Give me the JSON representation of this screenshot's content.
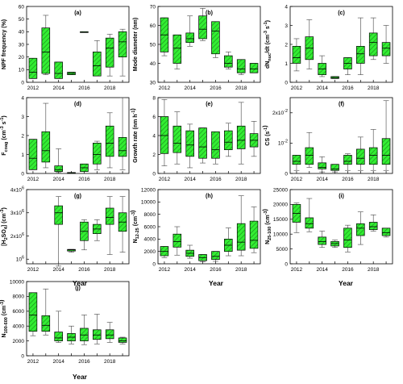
{
  "figure": {
    "x_axis_title": "Year",
    "box_fill": "#33ee33",
    "hatch_color": "#1a8a1a",
    "line_color": "#000000",
    "whisker_color": "#444444"
  },
  "chart_data": [
    {
      "type": "box",
      "title": "(a)",
      "ylabel": "NPF frequency (%)",
      "ylim": [
        0,
        60
      ],
      "yticks": [
        "0",
        "10",
        "20",
        "30",
        "40",
        "50",
        "60"
      ],
      "xticks": [
        "2012",
        "2014",
        "2016",
        "2018"
      ],
      "categories": [
        "2012",
        "2013",
        "2014",
        "2015",
        "2016",
        "2017",
        "2018",
        "2019"
      ],
      "boxes": [
        {
          "whislo": 3,
          "q1": 3,
          "med": 8,
          "q3": 19,
          "whishi": 19
        },
        {
          "whislo": 6,
          "q1": 7,
          "med": 24,
          "q3": 43,
          "whishi": 53
        },
        {
          "whislo": 3,
          "q1": 3,
          "med": 7,
          "q3": 16,
          "whishi": 16
        },
        {
          "whislo": 6,
          "q1": 6,
          "med": 7,
          "q3": 8,
          "whishi": 8
        },
        {
          "whislo": 40,
          "q1": 40,
          "med": 40,
          "q3": 40,
          "whishi": 40
        },
        {
          "whislo": 5,
          "q1": 5,
          "med": 13,
          "q3": 24,
          "whishi": 33
        },
        {
          "whislo": 5,
          "q1": 12,
          "med": 27,
          "q3": 35,
          "whishi": 38
        },
        {
          "whislo": 5,
          "q1": 20,
          "med": 32,
          "q3": 40,
          "whishi": 42
        }
      ]
    },
    {
      "type": "box",
      "title": "(b)",
      "ylabel": "Mode diameter (nm)",
      "ylim": [
        30,
        70
      ],
      "yticks": [
        "30",
        "40",
        "50",
        "60",
        "70"
      ],
      "xticks": [
        "2012",
        "2014",
        "2016",
        "2018"
      ],
      "categories": [
        "2012",
        "2013",
        "2014",
        "2015",
        "2016",
        "2017",
        "2018",
        "2019"
      ],
      "boxes": [
        {
          "whislo": 44,
          "q1": 46,
          "med": 55,
          "q3": 64,
          "whishi": 64
        },
        {
          "whislo": 37,
          "q1": 40,
          "med": 48,
          "q3": 55,
          "whishi": 55
        },
        {
          "whislo": 49,
          "q1": 51,
          "med": 53,
          "q3": 56,
          "whishi": 65
        },
        {
          "whislo": 52,
          "q1": 53,
          "med": 58,
          "q3": 65,
          "whishi": 69
        },
        {
          "whislo": 43,
          "q1": 45,
          "med": 57,
          "q3": 62,
          "whishi": 62
        },
        {
          "whislo": 37,
          "q1": 38,
          "med": 40,
          "q3": 44,
          "whishi": 46
        },
        {
          "whislo": 34,
          "q1": 35,
          "med": 37,
          "q3": 42,
          "whishi": 42
        },
        {
          "whislo": 35,
          "q1": 35,
          "med": 37,
          "q3": 40,
          "whishi": 40
        }
      ]
    },
    {
      "type": "box",
      "title": "(c)",
      "ylabel": "dNnuc/dt (cm-3 s-1)",
      "ylabel_main": "dN",
      "ylabel_sub": "nuc",
      "ylabel_rest": "/dt (cm",
      "ylabel_sup1": "-3",
      "ylabel_mid": " s",
      "ylabel_sup2": "-1",
      "ylabel_end": ")",
      "ylim": [
        0,
        4
      ],
      "yticks": [
        "0",
        "1",
        "2",
        "3",
        "4"
      ],
      "xticks": [
        "2012",
        "2014",
        "2016",
        "2018"
      ],
      "categories": [
        "2012",
        "2013",
        "2014",
        "2015",
        "2016",
        "2017",
        "2018",
        "2019"
      ],
      "boxes": [
        {
          "whislo": 0.6,
          "q1": 1.0,
          "med": 1.3,
          "q3": 1.9,
          "whishi": 2.3
        },
        {
          "whislo": 0.7,
          "q1": 1.2,
          "med": 1.8,
          "q3": 2.4,
          "whishi": 3.3
        },
        {
          "whislo": 0.3,
          "q1": 0.4,
          "med": 0.7,
          "q3": 1.0,
          "whishi": 1.4
        },
        {
          "whislo": 0.2,
          "q1": 0.2,
          "med": 0.25,
          "q3": 0.3,
          "whishi": 0.3
        },
        {
          "whislo": 0.4,
          "q1": 0.7,
          "med": 1.0,
          "q3": 1.3,
          "whishi": 1.3
        },
        {
          "whislo": 0.4,
          "q1": 1.0,
          "med": 1.5,
          "q3": 1.9,
          "whishi": 3.4
        },
        {
          "whislo": 1.2,
          "q1": 1.4,
          "med": 2.1,
          "q3": 2.6,
          "whishi": 3.4
        },
        {
          "whislo": 1.0,
          "q1": 1.4,
          "med": 1.8,
          "q3": 2.1,
          "whishi": 3.0
        }
      ]
    },
    {
      "type": "box",
      "title": "(d)",
      "ylabel": "Fcoag (cm-3 s-1)",
      "ylabel_main": "F",
      "ylabel_sub": "coag",
      "ylabel_rest": " (cm",
      "ylabel_sup1": "-3",
      "ylabel_mid": " s",
      "ylabel_sup2": "-1",
      "ylabel_end": ")",
      "ylim": [
        0,
        4
      ],
      "yticks": [
        "0",
        "1",
        "2",
        "3",
        "4"
      ],
      "xticks": [
        "2012",
        "2014",
        "2016",
        "2018"
      ],
      "categories": [
        "2012",
        "2013",
        "2014",
        "2015",
        "2016",
        "2017",
        "2018",
        "2019"
      ],
      "boxes": [
        {
          "whislo": 0.2,
          "q1": 0.2,
          "med": 0.8,
          "q3": 1.8,
          "whishi": 1.8
        },
        {
          "whislo": 0.3,
          "q1": 0.6,
          "med": 1.2,
          "q3": 2.2,
          "whishi": 3.7
        },
        {
          "whislo": 0.05,
          "q1": 0.1,
          "med": 0.2,
          "q3": 0.4,
          "whishi": 1.3
        },
        {
          "whislo": 0.0,
          "q1": 0.0,
          "med": 0.02,
          "q3": 0.05,
          "whishi": 0.05
        },
        {
          "whislo": 0.1,
          "q1": 0.1,
          "med": 0.3,
          "q3": 0.5,
          "whishi": 0.5
        },
        {
          "whislo": 0.2,
          "q1": 0.5,
          "med": 1.0,
          "q3": 1.6,
          "whishi": 1.7
        },
        {
          "whislo": 0.3,
          "q1": 0.9,
          "med": 1.6,
          "q3": 2.5,
          "whishi": 3.2
        },
        {
          "whislo": 0.2,
          "q1": 0.9,
          "med": 1.2,
          "q3": 1.9,
          "whishi": 4.0
        }
      ]
    },
    {
      "type": "box",
      "title": "(e)",
      "ylabel": "Growth rate (nm h-1)",
      "ylabel_main": "Growth rate (nm h",
      "ylabel_sup1": "-1",
      "ylabel_end": ")",
      "ylim": [
        0,
        8
      ],
      "yticks": [
        "0",
        "2",
        "4",
        "6",
        "8"
      ],
      "xticks": [
        "2012",
        "2014",
        "2016",
        "2018"
      ],
      "categories": [
        "2012",
        "2013",
        "2014",
        "2015",
        "2016",
        "2017",
        "2018",
        "2019"
      ],
      "boxes": [
        {
          "whislo": 0.8,
          "q1": 2.1,
          "med": 4.0,
          "q3": 6.0,
          "whishi": 7.8
        },
        {
          "whislo": 1.0,
          "q1": 2.2,
          "med": 3.2,
          "q3": 5.0,
          "whishi": 6.5
        },
        {
          "whislo": 0.6,
          "q1": 1.8,
          "med": 3.0,
          "q3": 4.5,
          "whishi": 5.2
        },
        {
          "whislo": 1.1,
          "q1": 1.6,
          "med": 2.8,
          "q3": 4.8,
          "whishi": 4.8
        },
        {
          "whislo": 1.0,
          "q1": 1.6,
          "med": 2.5,
          "q3": 4.4,
          "whishi": 4.4
        },
        {
          "whislo": 1.8,
          "q1": 2.5,
          "med": 3.3,
          "q3": 4.5,
          "whishi": 5.3
        },
        {
          "whislo": 1.0,
          "q1": 2.6,
          "med": 3.5,
          "q3": 5.0,
          "whishi": 7.5
        },
        {
          "whislo": 1.8,
          "q1": 2.8,
          "med": 3.5,
          "q3": 4.2,
          "whishi": 5.5
        }
      ]
    },
    {
      "type": "box",
      "title": "(f)",
      "ylabel": "CS (s-1)",
      "ylabel_main": "CS",
      "ylabel_rest": " (s",
      "ylabel_sup1": "-1",
      "ylabel_end": ")",
      "ylim": [
        0,
        0.025
      ],
      "yticks": [
        "0",
        "10",
        "2x10"
      ],
      "ytick_exps": [
        "",
        "-2",
        "-2"
      ],
      "ytick_vals": [
        0,
        0.01,
        0.02
      ],
      "xticks": [
        "2012",
        "2014",
        "2016",
        "2018"
      ],
      "categories": [
        "2012",
        "2013",
        "2014",
        "2015",
        "2016",
        "2017",
        "2018",
        "2019"
      ],
      "boxes": [
        {
          "whislo": 0.001,
          "q1": 0.003,
          "med": 0.004,
          "q3": 0.006,
          "whishi": 0.006
        },
        {
          "whislo": 0.002,
          "q1": 0.003,
          "med": 0.006,
          "q3": 0.0085,
          "whishi": 0.0135
        },
        {
          "whislo": 0.0005,
          "q1": 0.0015,
          "med": 0.002,
          "q3": 0.0035,
          "whishi": 0.0055
        },
        {
          "whislo": 0.0005,
          "q1": 0.001,
          "med": 0.0015,
          "q3": 0.003,
          "whishi": 0.003
        },
        {
          "whislo": 0.001,
          "q1": 0.003,
          "med": 0.004,
          "q3": 0.006,
          "whishi": 0.0065
        },
        {
          "whislo": 0.001,
          "q1": 0.003,
          "med": 0.005,
          "q3": 0.008,
          "whishi": 0.012
        },
        {
          "whislo": 0.001,
          "q1": 0.003,
          "med": 0.006,
          "q3": 0.0085,
          "whishi": 0.0145
        },
        {
          "whislo": 0.001,
          "q1": 0.003,
          "med": 0.006,
          "q3": 0.0115,
          "whishi": 0.024
        }
      ]
    },
    {
      "type": "box",
      "title": "(g)",
      "ylabel": "[H2SO4] (cm-3)",
      "ylabel_main": "[H",
      "ylabel_sub": "2",
      "ylabel_rest": "SO",
      "ylabel_sub2": "4",
      "ylabel_mid": "] (cm",
      "ylabel_sup1": "-3",
      "ylabel_end": ")",
      "ylim": [
        800000,
        4000000
      ],
      "yticks": [
        "10",
        "2x10",
        "3x10",
        "4x10"
      ],
      "ytick_exps": [
        "6",
        "6",
        "6",
        "6"
      ],
      "ytick_vals": [
        1000000,
        2000000,
        3000000,
        4000000
      ],
      "xticks": [
        "2012",
        "2014",
        "2016",
        "2018"
      ],
      "categories": [
        "2012",
        "2013",
        "2014",
        "2015",
        "2016",
        "2017",
        "2018",
        "2019"
      ],
      "boxes": [
        null,
        null,
        {
          "whislo": 700000,
          "q1": 2500000,
          "med": 3000000,
          "q3": 3300000,
          "whishi": 3700000
        },
        {
          "whislo": 1300000,
          "q1": 1350000,
          "med": 1400000,
          "q3": 1420000,
          "whishi": 1420000
        },
        {
          "whislo": 1400000,
          "q1": 1800000,
          "med": 2200000,
          "q3": 2600000,
          "whishi": 2700000
        },
        {
          "whislo": 1800000,
          "q1": 2100000,
          "med": 2300000,
          "q3": 2500000,
          "whishi": 2700000
        },
        {
          "whislo": 1200000,
          "q1": 2500000,
          "med": 2800000,
          "q3": 3200000,
          "whishi": 3700000
        },
        {
          "whislo": 1300000,
          "q1": 2200000,
          "med": 2600000,
          "q3": 3000000,
          "whishi": 3700000
        }
      ]
    },
    {
      "type": "box",
      "title": "(h)",
      "ylabel": "N12-25 (cm-3)",
      "ylabel_main": "N",
      "ylabel_sub": "12-25",
      "ylabel_rest": " (cm",
      "ylabel_sup1": "-3",
      "ylabel_end": ")",
      "ylim": [
        0,
        12000
      ],
      "yticks": [
        "0",
        "2000",
        "4000",
        "6000",
        "8000",
        "10000",
        "12000"
      ],
      "xticks": [
        "2012",
        "2014",
        "2016",
        "2018"
      ],
      "categories": [
        "2012",
        "2013",
        "2014",
        "2015",
        "2016",
        "2017",
        "2018",
        "2019"
      ],
      "boxes": [
        {
          "whislo": 1000,
          "q1": 1300,
          "med": 2000,
          "q3": 2800,
          "whishi": 2800
        },
        {
          "whislo": 1400,
          "q1": 2700,
          "med": 3600,
          "q3": 4800,
          "whishi": 6000
        },
        {
          "whislo": 900,
          "q1": 1200,
          "med": 1700,
          "q3": 2200,
          "whishi": 3000
        },
        {
          "whislo": 300,
          "q1": 500,
          "med": 1000,
          "q3": 1500,
          "whishi": 1500
        },
        {
          "whislo": 400,
          "q1": 700,
          "med": 1200,
          "q3": 2000,
          "whishi": 2000
        },
        {
          "whislo": 1300,
          "q1": 2000,
          "med": 3000,
          "q3": 4000,
          "whishi": 5800
        },
        {
          "whislo": 1300,
          "q1": 2200,
          "med": 3500,
          "q3": 6500,
          "whishi": 11000
        },
        {
          "whislo": 1800,
          "q1": 2500,
          "med": 3800,
          "q3": 6900,
          "whishi": 9200
        }
      ]
    },
    {
      "type": "box",
      "title": "(i)",
      "ylabel": "N25-100 (cm-3)",
      "ylabel_main": "N",
      "ylabel_sub": "25-100",
      "ylabel_rest": " (cm",
      "ylabel_sup1": "-3",
      "ylabel_end": ")",
      "ylim": [
        0,
        25000
      ],
      "yticks": [
        "0",
        "5000",
        "10000",
        "15000",
        "20000",
        "25000"
      ],
      "xticks": [
        "2012",
        "2014",
        "2016",
        "2018"
      ],
      "categories": [
        "2012",
        "2013",
        "2014",
        "2015",
        "2016",
        "2017",
        "2018",
        "2019"
      ],
      "boxes": [
        {
          "whislo": 10500,
          "q1": 14000,
          "med": 17000,
          "q3": 20000,
          "whishi": 20500
        },
        {
          "whislo": 10800,
          "q1": 12000,
          "med": 13500,
          "q3": 15500,
          "whishi": 22000
        },
        {
          "whislo": 5500,
          "q1": 6500,
          "med": 7500,
          "q3": 9000,
          "whishi": 11000
        },
        {
          "whislo": 5500,
          "q1": 6000,
          "med": 6800,
          "q3": 7500,
          "whishi": 8000
        },
        {
          "whislo": 4000,
          "q1": 5500,
          "med": 8000,
          "q3": 12000,
          "whishi": 13000
        },
        {
          "whislo": 6500,
          "q1": 9500,
          "med": 12000,
          "q3": 13500,
          "whishi": 17500
        },
        {
          "whislo": 11000,
          "q1": 11500,
          "med": 12500,
          "q3": 14000,
          "whishi": 16500
        },
        {
          "whislo": 9000,
          "q1": 9500,
          "med": 10500,
          "q3": 12000,
          "whishi": 12000
        }
      ]
    },
    {
      "type": "box",
      "title": "(j)",
      "ylabel": "N100-600 (cm-3)",
      "ylabel_main": "N",
      "ylabel_sub": "100-600",
      "ylabel_rest": " (cm",
      "ylabel_sup1": "-3",
      "ylabel_end": ")",
      "ylim": [
        0,
        10000
      ],
      "yticks": [
        "0",
        "2000",
        "4000",
        "6000",
        "8000",
        "10000"
      ],
      "xticks": [
        "2012",
        "2014",
        "2016",
        "2018"
      ],
      "categories": [
        "2012",
        "2013",
        "2014",
        "2015",
        "2016",
        "2017",
        "2018",
        "2019"
      ],
      "boxes": [
        {
          "whislo": 2700,
          "q1": 3300,
          "med": 5500,
          "q3": 8500,
          "whishi": 8500
        },
        {
          "whislo": 2800,
          "q1": 3300,
          "med": 4100,
          "q3": 5400,
          "whishi": 9000
        },
        {
          "whislo": 1800,
          "q1": 2000,
          "med": 2400,
          "q3": 3200,
          "whishi": 6000
        },
        {
          "whislo": 1600,
          "q1": 2000,
          "med": 2500,
          "q3": 3000,
          "whishi": 4000
        },
        {
          "whislo": 1500,
          "q1": 2000,
          "med": 2800,
          "q3": 3700,
          "whishi": 5500
        },
        {
          "whislo": 1600,
          "q1": 2200,
          "med": 2800,
          "q3": 3500,
          "whishi": 5600
        },
        {
          "whislo": 1800,
          "q1": 2300,
          "med": 2800,
          "q3": 3500,
          "whishi": 4500
        },
        {
          "whislo": 1600,
          "q1": 1800,
          "med": 2000,
          "q3": 2400,
          "whishi": 2500
        }
      ]
    }
  ]
}
